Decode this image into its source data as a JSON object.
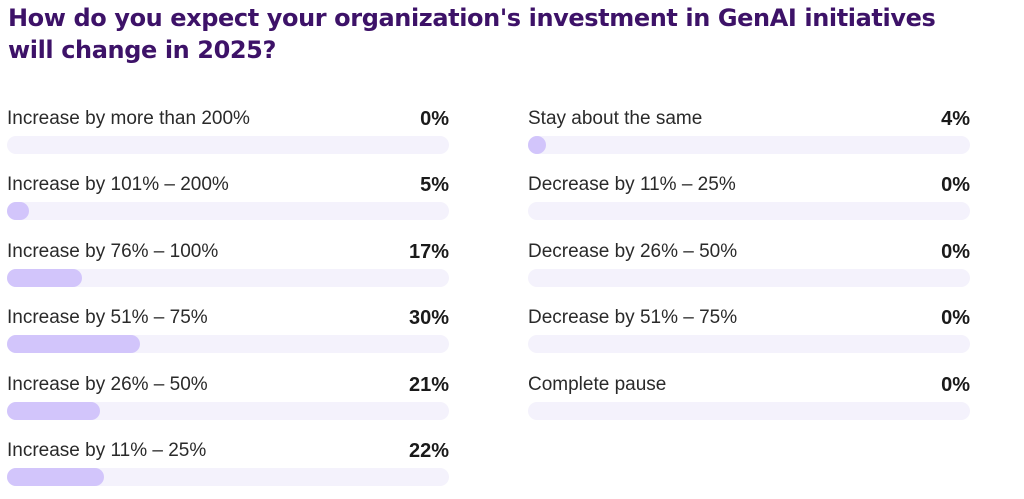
{
  "colors": {
    "title": "#3d1268",
    "track": "#f4f2fc",
    "fill": "#d2c5fb"
  },
  "chart_data": {
    "type": "bar",
    "title": "How do you expect your organization's investment in GenAI initiatives will change in 2025?",
    "unit": "%",
    "xlim": [
      0,
      100
    ],
    "columns": [
      {
        "categories": [
          "Increase by more than 200%",
          "Increase by 101% – 200%",
          "Increase by 76% – 100%",
          "Increase by 51% – 75%",
          "Increase by 26% – 50%",
          "Increase by 11% – 25%"
        ],
        "values": [
          0,
          5,
          17,
          30,
          21,
          22
        ]
      },
      {
        "categories": [
          "Stay about the same",
          "Decrease by 11% – 25%",
          "Decrease by 26% – 50%",
          "Decrease by 51% – 75%",
          "Complete pause"
        ],
        "values": [
          4,
          0,
          0,
          0,
          0
        ]
      }
    ]
  }
}
